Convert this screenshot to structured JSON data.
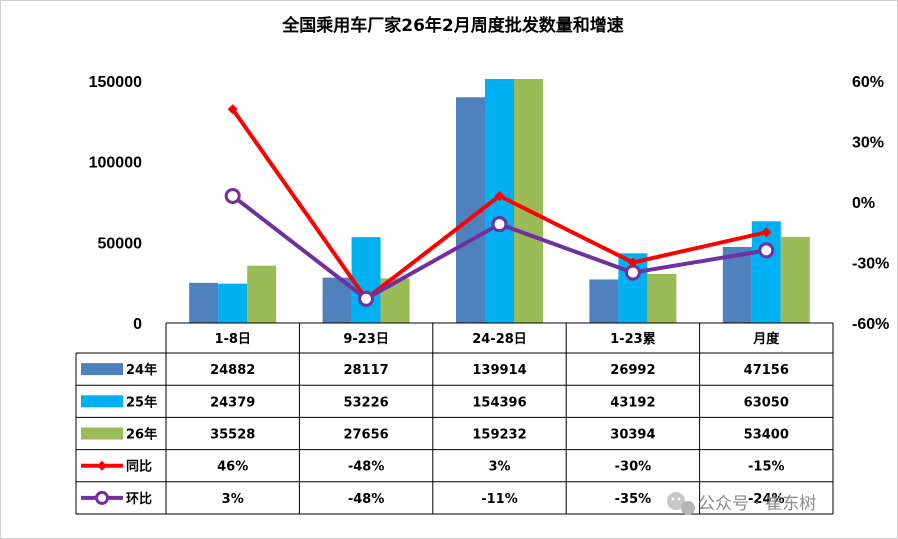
{
  "chart_data": {
    "type": "bar",
    "title": "全国乘用车厂家26年2月周度批发数量和增速",
    "categories": [
      "1-8日",
      "9-23日",
      "24-28日",
      "1-23累",
      "月度"
    ],
    "series": [
      {
        "name": "24年",
        "type": "bar",
        "axis": "left",
        "color": "#4f81bd",
        "values": [
          24882,
          28117,
          139914,
          26992,
          47156
        ],
        "labels": [
          "24882",
          "28117",
          "139914",
          "26992",
          "47156"
        ]
      },
      {
        "name": "25年",
        "type": "bar",
        "axis": "left",
        "color": "#00b0f0",
        "values": [
          24379,
          53226,
          154396,
          43192,
          63050
        ],
        "labels": [
          "24379",
          "53226",
          "154396",
          "43192",
          "63050"
        ]
      },
      {
        "name": "26年",
        "type": "bar",
        "axis": "left",
        "color": "#9bbb59",
        "values": [
          35528,
          27656,
          159232,
          30394,
          53400
        ],
        "labels": [
          "35528",
          "27656",
          "159232",
          "30394",
          "53400"
        ]
      },
      {
        "name": "同比",
        "type": "line",
        "axis": "right",
        "color": "#ff0000",
        "marker": "diamond",
        "values": [
          46,
          -48,
          3,
          -30,
          -15
        ],
        "labels": [
          "46%",
          "-48%",
          "3%",
          "-30%",
          "-15%"
        ]
      },
      {
        "name": "环比",
        "type": "line",
        "axis": "right",
        "color": "#7030a0",
        "marker": "circle",
        "values": [
          3,
          -48,
          -11,
          -35,
          -24
        ],
        "labels": [
          "3%",
          "-48%",
          "-11%",
          "-35%",
          "-24%"
        ]
      }
    ],
    "left_axis": {
      "min": 0,
      "max": 150000,
      "ticks": [
        "0",
        "50000",
        "100000",
        "150000"
      ]
    },
    "right_axis": {
      "min": -60,
      "max": 60,
      "unit": "%",
      "ticks": [
        "-60%",
        "-30%",
        "0%",
        "30%",
        "60%"
      ]
    },
    "grid": false,
    "legend": "data-table-below"
  },
  "watermark": {
    "text": "公众号 · 崔东树",
    "icon": "wechat-icon"
  }
}
